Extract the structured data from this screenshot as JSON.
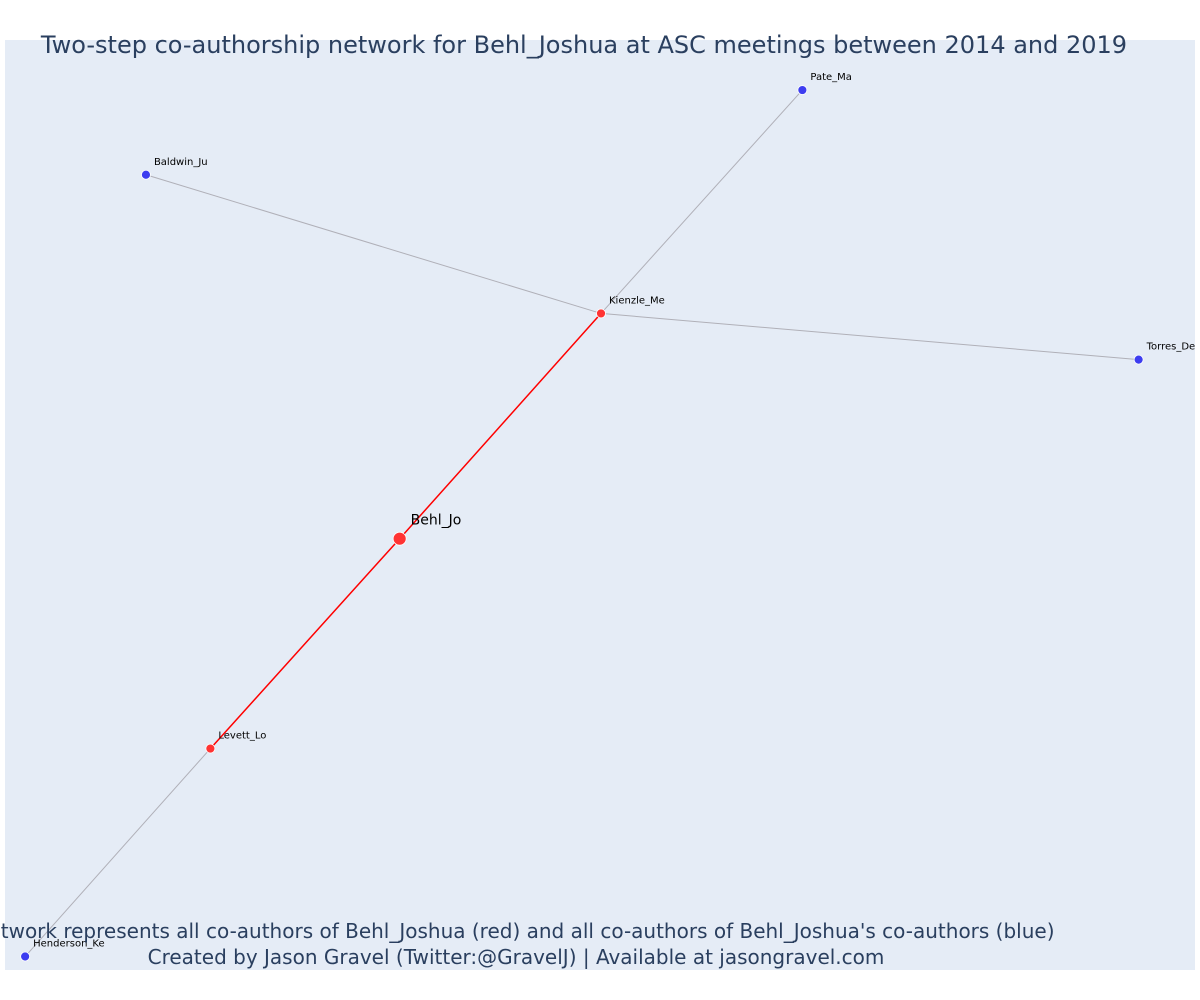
{
  "chart_data": {
    "type": "network",
    "title": "Two-step co-authorship network for Behl_Joshua at ASC meetings between 2014 and 2019",
    "caption_lines": [
      "Network represents all co-authors of Behl_Joshua (red) and all co-authors of Behl_Joshua's co-authors (blue)",
      "Created by Jason Gravel (Twitter:@GravelJ) | Available at jasongravel.com"
    ],
    "colors": {
      "plot_bg": "#e5ecf6",
      "direct": "#ff3333",
      "second": "#3d3df0",
      "edge_direct": "#ff0000",
      "edge_second": "#b0b0b8",
      "text": "#2a3f5f"
    },
    "nodes": [
      {
        "id": "behl",
        "label": "Behl_Jo",
        "group": "center",
        "x": 0.0,
        "y": 0.0
      },
      {
        "id": "kienzle",
        "label": "Kienzle_Me",
        "group": "direct",
        "x": 1.0,
        "y": 1.17
      },
      {
        "id": "levett",
        "label": "Levett_Lo",
        "group": "direct",
        "x": -0.94,
        "y": -1.09
      },
      {
        "id": "pate",
        "label": "Pate_Ma",
        "group": "second",
        "x": 2.0,
        "y": 2.33
      },
      {
        "id": "baldwin",
        "label": "Baldwin_Ju",
        "group": "second",
        "x": -1.26,
        "y": 1.89
      },
      {
        "id": "torres",
        "label": "Torres_De",
        "group": "second",
        "x": 3.67,
        "y": 0.93
      },
      {
        "id": "henderson",
        "label": "Henderson_Ke",
        "group": "second",
        "x": -1.86,
        "y": -2.17
      }
    ],
    "edges": [
      {
        "source": "behl",
        "target": "kienzle",
        "type": "direct"
      },
      {
        "source": "behl",
        "target": "levett",
        "type": "direct"
      },
      {
        "source": "kienzle",
        "target": "pate",
        "type": "second"
      },
      {
        "source": "kienzle",
        "target": "baldwin",
        "type": "second"
      },
      {
        "source": "kienzle",
        "target": "torres",
        "type": "second"
      },
      {
        "source": "levett",
        "target": "henderson",
        "type": "second"
      }
    ],
    "xlim": [
      -1.96,
      3.95
    ],
    "ylim": [
      -2.24,
      2.59
    ]
  }
}
